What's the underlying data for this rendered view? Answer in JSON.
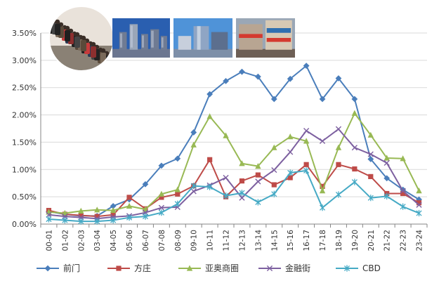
{
  "chart_data": {
    "type": "line",
    "title": "",
    "xlabel": "",
    "ylabel": "",
    "ylim": [
      0,
      0.035
    ],
    "y_ticks": [
      "0.00%",
      "0.50%",
      "1.00%",
      "1.50%",
      "2.00%",
      "2.50%",
      "3.00%",
      "3.50%"
    ],
    "grid": "horizontal",
    "legend_position": "bottom",
    "categories": [
      "00-01",
      "01-02",
      "02-03",
      "03-04",
      "04-05",
      "05-06",
      "06-07",
      "07-08",
      "08-09",
      "09-10",
      "10-11",
      "11-12",
      "12-13",
      "13-14",
      "14-15",
      "15-16",
      "16-17",
      "17-18",
      "18-19",
      "19-20",
      "20-21",
      "21-22",
      "22-23",
      "23-24"
    ],
    "series": [
      {
        "name": "前门",
        "color": "#4a7ebb",
        "marker": "diamond",
        "values": [
          0.0023,
          0.0018,
          0.0015,
          0.0015,
          0.0033,
          0.0045,
          0.0073,
          0.0107,
          0.012,
          0.0168,
          0.0238,
          0.0262,
          0.0279,
          0.027,
          0.0229,
          0.0266,
          0.029,
          0.0229,
          0.0267,
          0.0229,
          0.0119,
          0.0084,
          0.0063,
          0.0045
        ]
      },
      {
        "name": "方庄",
        "color": "#be4b48",
        "marker": "square",
        "values": [
          0.0025,
          0.0018,
          0.0016,
          0.0014,
          0.0017,
          0.0049,
          0.0028,
          0.0049,
          0.0055,
          0.007,
          0.0118,
          0.005,
          0.0079,
          0.009,
          0.0072,
          0.0085,
          0.0109,
          0.0069,
          0.0109,
          0.0101,
          0.0087,
          0.0056,
          0.0056,
          0.0039
        ]
      },
      {
        "name": "亚奥商圈",
        "color": "#98b954",
        "marker": "triangle",
        "values": [
          0.0022,
          0.002,
          0.0024,
          0.0026,
          0.0025,
          0.0033,
          0.0027,
          0.0055,
          0.0063,
          0.0145,
          0.0197,
          0.0162,
          0.0111,
          0.0106,
          0.014,
          0.016,
          0.0152,
          0.0061,
          0.014,
          0.0203,
          0.0163,
          0.0121,
          0.012,
          0.0061
        ]
      },
      {
        "name": "金融街",
        "color": "#7d60a0",
        "marker": "x",
        "values": [
          0.0017,
          0.0014,
          0.0012,
          0.001,
          0.0013,
          0.0015,
          0.0021,
          0.003,
          0.0031,
          0.006,
          0.0071,
          0.0085,
          0.0048,
          0.0078,
          0.0099,
          0.0132,
          0.0171,
          0.0152,
          0.0174,
          0.014,
          0.0128,
          0.0112,
          0.0061,
          0.0035
        ]
      },
      {
        "name": "CBD",
        "color": "#46aac5",
        "marker": "star",
        "values": [
          0.0009,
          0.0007,
          0.0005,
          0.0005,
          0.0007,
          0.0012,
          0.0014,
          0.0021,
          0.0037,
          0.007,
          0.0068,
          0.0052,
          0.0057,
          0.004,
          0.0055,
          0.0094,
          0.0098,
          0.003,
          0.0054,
          0.0077,
          0.0048,
          0.0051,
          0.0032,
          0.002
        ]
      }
    ]
  },
  "photos": [
    {
      "name": "crowd-photo",
      "sky": "#e9e2da",
      "ground": "#8a8175",
      "accent": "#c63b3b"
    },
    {
      "name": "cbd-towers-photo",
      "sky": "#2a5fb0",
      "ground": "#6b7690",
      "accent": "#c9d4e6"
    },
    {
      "name": "financial-street-photo",
      "sky": "#4f93d8",
      "ground": "#7d8fa8",
      "accent": "#e8eef5"
    },
    {
      "name": "shopping-mall-photo",
      "sky": "#9aa7b6",
      "ground": "#6d5f55",
      "accent": "#d43a2f"
    }
  ]
}
